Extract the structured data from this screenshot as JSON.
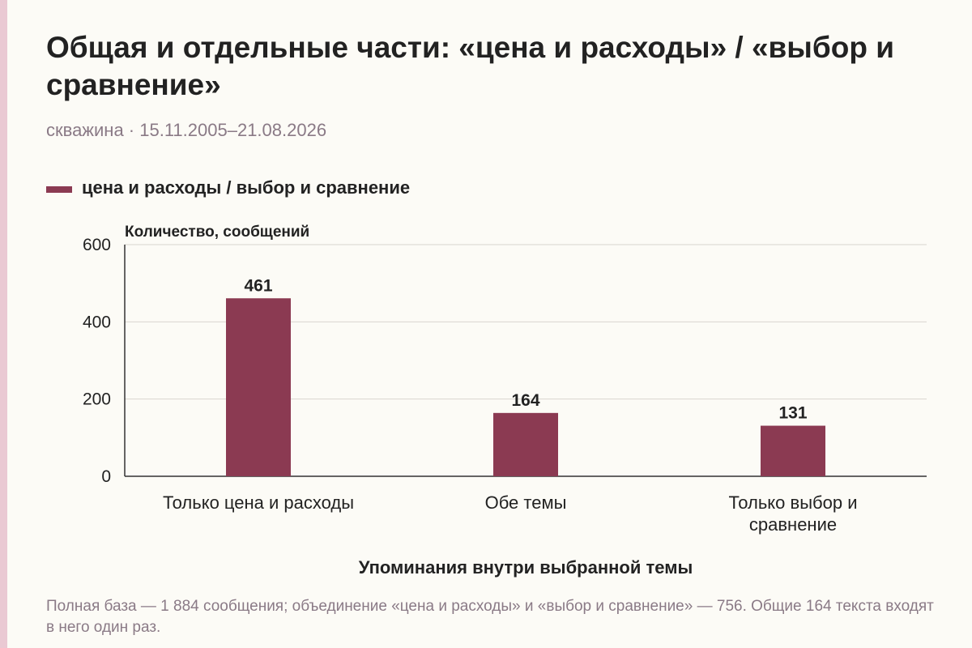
{
  "title": "Общая и отдельные части: «цена и расходы» / «выбор и сравнение»",
  "subtitle": "скважина · 15.11.2005–21.08.2026",
  "legend": {
    "label": "цена и расходы / выбор и сравнение"
  },
  "note": "Полная база — 1 884 сообщения; объединение «цена и расходы» и «выбор и сравнение» — 756. Общие 164 текста входят в него один раз.",
  "colors": {
    "bar": "#8b3a52",
    "accent": "#eac9d3",
    "grid": "#d9d6cf",
    "muted": "#8a7a86"
  },
  "chart_data": {
    "type": "bar",
    "categories": [
      "Только цена и расходы",
      "Обе темы",
      "Только выбор и сравнение"
    ],
    "category_lines": [
      [
        "Только цена и расходы"
      ],
      [
        "Обе темы"
      ],
      [
        "Только выбор и",
        "сравнение"
      ]
    ],
    "values": [
      461,
      164,
      131
    ],
    "ylabel": "Количество, сообщений",
    "xlabel": "Упоминания внутри выбранной темы",
    "ylim": [
      0,
      600
    ],
    "yticks": [
      0,
      200,
      400,
      600
    ],
    "grid": true,
    "legend_position": "top-left"
  }
}
